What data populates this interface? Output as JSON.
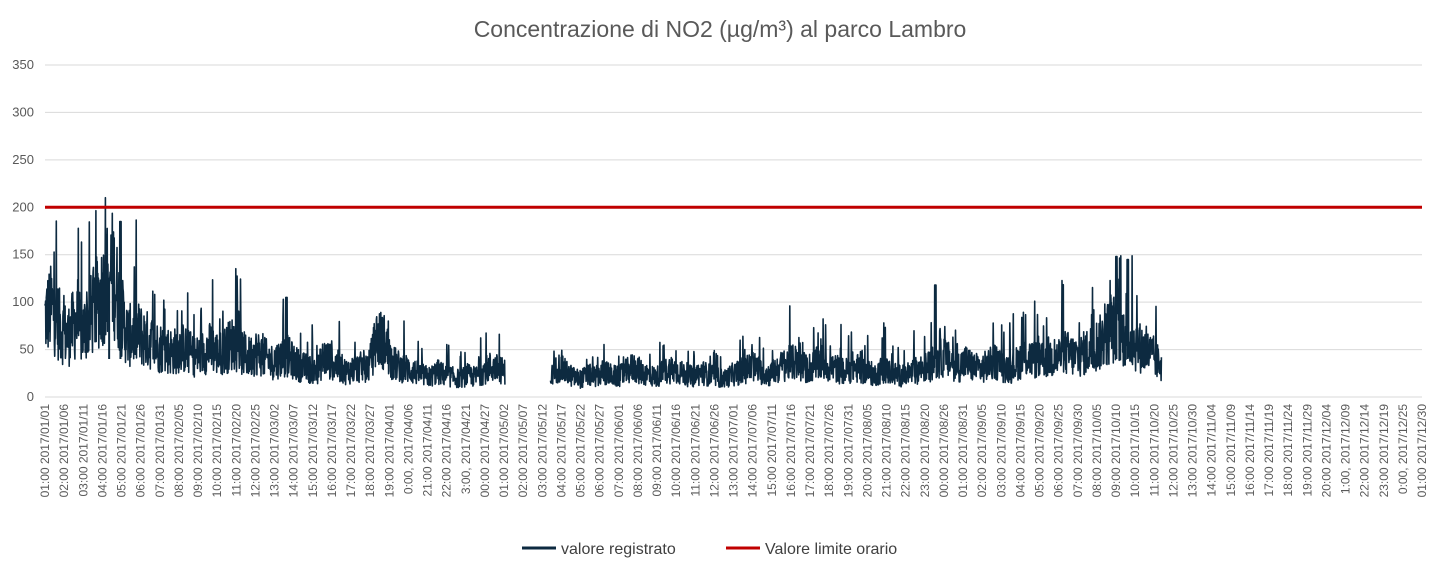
{
  "chart_data": {
    "type": "line",
    "title": "Concentrazione di NO2 (µg/m³) al parco Lambro",
    "xlabel": "",
    "ylabel": "",
    "ylim": [
      0,
      350
    ],
    "yticks": [
      0,
      50,
      100,
      150,
      200,
      250,
      300,
      350
    ],
    "grid": true,
    "legend_position": "bottom",
    "x_tick_labels": [
      "01:00 2017/01/01",
      "02:00 2017/01/06",
      "03:00 2017/01/11",
      "04:00 2017/01/16",
      "05:00 2017/01/21",
      "06:00 2017/01/26",
      "07:00 2017/01/31",
      "08:00 2017/02/05",
      "09:00 2017/02/10",
      "10:00 2017/02/15",
      "11:00 2017/02/20",
      "12:00 2017/02/25",
      "13:00 2017/03/02",
      "14:00 2017/03/07",
      "15:00 2017/03/12",
      "16:00 2017/03/17",
      "17:00 2017/03/22",
      "18:00 2017/03/27",
      "19:00 2017/04/01",
      "0:00, 2017/04/06",
      "21:00 2017/04/11",
      "22:00 2017/04/16",
      "3:00, 2017/04/21",
      "00:00 2017/04/27",
      "01:00 2017/05/02",
      "02:00 2017/05/07",
      "03:00 2017/05/12",
      "04:00 2017/05/17",
      "05:00 2017/05/22",
      "06:00 2017/05/27",
      "07:00 2017/06/01",
      "08:00 2017/06/06",
      "09:00 2017/06/11",
      "10:00 2017/06/16",
      "11:00 2017/06/21",
      "12:00 2017/06/26",
      "13:00 2017/07/01",
      "14:00 2017/07/06",
      "15:00 2017/07/11",
      "16:00 2017/07/16",
      "17:00 2017/07/21",
      "18:00 2017/07/26",
      "19:00 2017/07/31",
      "20:00 2017/08/05",
      "21:00 2017/08/10",
      "22:00 2017/08/15",
      "23:00 2017/08/20",
      "00:00 2017/08/26",
      "01:00 2017/08/31",
      "02:00 2017/09/05",
      "03:00 2017/09/10",
      "04:00 2017/09/15",
      "05:00 2017/09/20",
      "06:00 2017/09/25",
      "07:00 2017/09/30",
      "08:00 2017/10/05",
      "09:00 2017/10/10",
      "10:00 2017/10/15",
      "11:00 2017/10/20",
      "12:00 2017/10/25",
      "13:00 2017/10/30",
      "14:00 2017/11/04",
      "15:00 2017/11/09",
      "16:00 2017/11/14",
      "17:00 2017/11/19",
      "18:00 2017/11/24",
      "19:00 2017/11/29",
      "20:00 2017/12/04",
      "1:00, 2017/12/09",
      "22:00 2017/12/14",
      "23:00 2017/12/19",
      "0:00, 2017/12/25",
      "01:00 2017/12/30"
    ],
    "x_range": [
      "2017/01/01",
      "2017/12/31"
    ],
    "series": [
      {
        "name": "valore registrato",
        "color": "#0d2a40",
        "note_x_units": "day of year (2017)",
        "segments": [
          {
            "x": [
              0,
              2,
              4,
              6,
              8,
              10,
              12,
              14,
              16,
              18,
              20,
              22,
              24,
              26,
              28,
              30,
              32,
              34,
              36,
              38,
              40,
              42,
              44,
              46,
              48,
              50,
              52,
              54,
              56,
              58,
              60,
              62,
              64,
              66,
              68,
              70,
              72,
              74,
              76,
              78,
              80,
              82,
              84,
              86,
              88,
              90,
              92,
              94,
              96,
              98,
              100,
              102,
              104,
              106,
              108,
              110,
              112,
              114,
              116,
              118,
              120,
              122
            ],
            "y": [
              80,
              90,
              70,
              60,
              75,
              65,
              80,
              95,
              110,
              125,
              85,
              60,
              65,
              60,
              55,
              50,
              48,
              45,
              50,
              45,
              40,
              45,
              50,
              42,
              48,
              55,
              45,
              40,
              45,
              40,
              35,
              38,
              42,
              35,
              30,
              28,
              25,
              40,
              35,
              30,
              25,
              28,
              30,
              32,
              60,
              55,
              35,
              30,
              28,
              25,
              22,
              20,
              25,
              22,
              20,
              18,
              22,
              20,
              25,
              30,
              28,
              25
            ]
          },
          {
            "x": [
              134,
              136,
              138,
              140,
              142,
              144,
              146,
              148,
              150,
              152,
              154,
              156,
              158,
              160,
              162,
              164,
              166,
              168,
              170,
              172,
              174,
              176,
              178,
              180,
              182,
              184,
              186,
              188,
              190,
              192,
              194,
              196,
              198,
              200,
              202,
              204,
              206,
              208,
              210,
              212,
              214,
              216,
              218,
              220,
              222,
              224,
              226,
              228,
              230,
              232,
              234,
              236,
              238,
              240,
              242,
              244,
              246,
              248,
              250,
              252,
              254,
              256,
              258,
              260,
              262,
              264,
              266,
              268,
              270,
              272,
              274,
              276,
              278,
              280,
              282,
              284,
              286,
              288,
              290,
              292,
              294,
              296
            ],
            "y": [
              20,
              30,
              25,
              20,
              18,
              22,
              20,
              25,
              22,
              20,
              25,
              30,
              25,
              22,
              20,
              25,
              28,
              25,
              22,
              20,
              25,
              22,
              20,
              18,
              22,
              25,
              28,
              30,
              25,
              22,
              28,
              32,
              35,
              30,
              28,
              32,
              35,
              30,
              28,
              25,
              30,
              28,
              25,
              22,
              28,
              25,
              22,
              20,
              25,
              28,
              30,
              35,
              40,
              35,
              30,
              35,
              30,
              28,
              32,
              35,
              30,
              28,
              35,
              40,
              38,
              35,
              40,
              38,
              45,
              42,
              40,
              45,
              50,
              55,
              65,
              70,
              60,
              55,
              50,
              45,
              40,
              30
            ]
          }
        ],
        "peaks": [
          {
            "x": 17,
            "y": 125
          },
          {
            "x": 20,
            "y": 185
          },
          {
            "x": 64,
            "y": 105
          },
          {
            "x": 236,
            "y": 118
          },
          {
            "x": 284,
            "y": 148
          },
          {
            "x": 287,
            "y": 145
          }
        ]
      },
      {
        "name": "Valore limite orario",
        "color": "#c00000",
        "x": [
          0,
          365
        ],
        "y": [
          200,
          200
        ]
      }
    ]
  }
}
